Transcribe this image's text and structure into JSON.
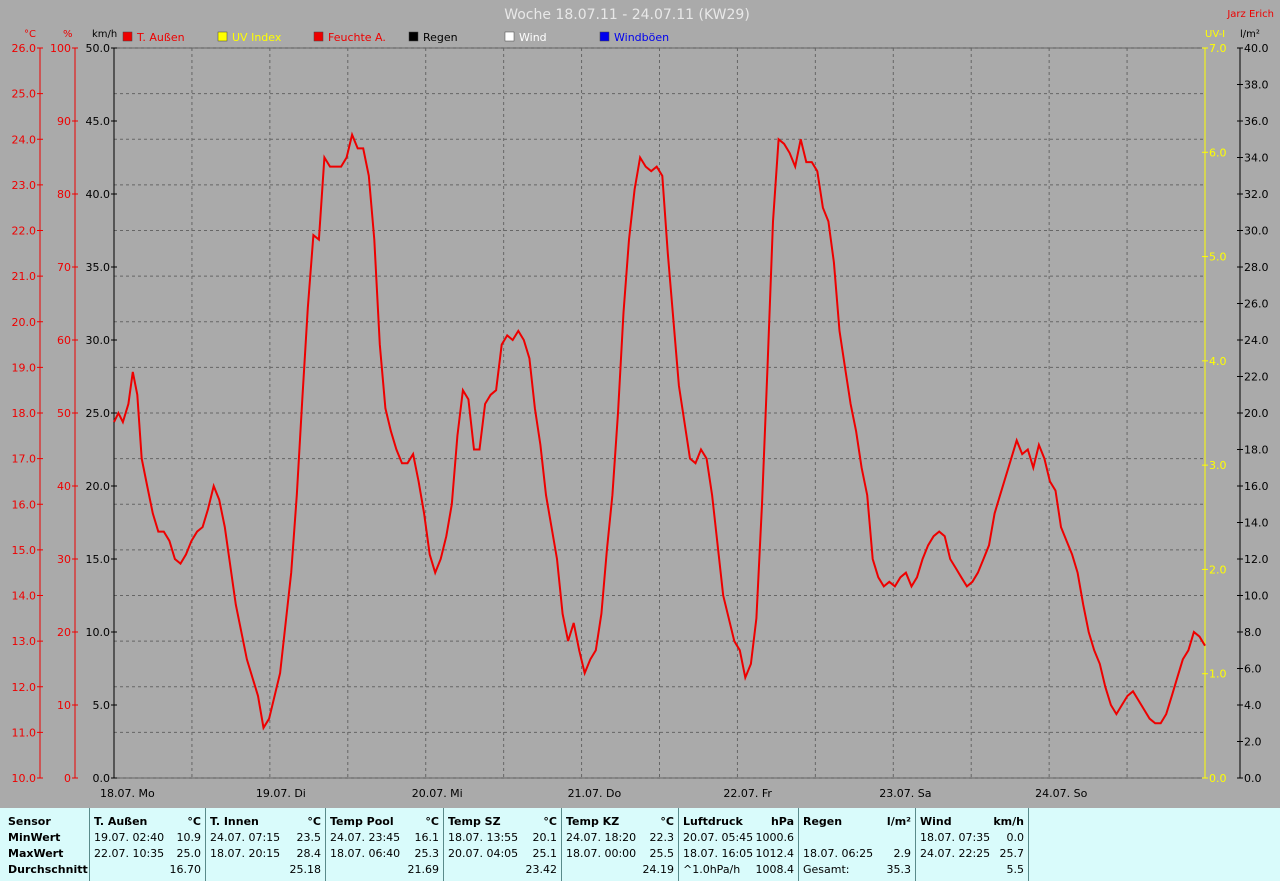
{
  "chart_data": {
    "type": "line",
    "title": "Woche 18.07.11 - 24.07.11 (KW29)",
    "author": "Jarz Erich",
    "axes": {
      "temp": {
        "unit": "°C",
        "min": 10,
        "max": 26,
        "ticks": [
          "10.0",
          "11.0",
          "12.0",
          "13.0",
          "14.0",
          "15.0",
          "16.0",
          "17.0",
          "18.0",
          "19.0",
          "20.0",
          "21.0",
          "22.0",
          "23.0",
          "24.0",
          "25.0",
          "26.0"
        ],
        "color": "#ee0000"
      },
      "humidity": {
        "unit": "%",
        "min": 0,
        "max": 100,
        "ticks": [
          "0",
          "10",
          "20",
          "30",
          "40",
          "50",
          "60",
          "70",
          "80",
          "90",
          "100"
        ],
        "color": "#ee0000"
      },
      "wind": {
        "unit": "km/h",
        "min": 0,
        "max": 50,
        "ticks": [
          "0.0",
          "5.0",
          "10.0",
          "15.0",
          "20.0",
          "25.0",
          "30.0",
          "35.0",
          "40.0",
          "45.0",
          "50.0"
        ],
        "color": "#000000"
      },
      "uv": {
        "unit": "UV-I",
        "min": 0,
        "max": 7,
        "ticks": [
          "0.0",
          "1.0",
          "2.0",
          "3.0",
          "4.0",
          "5.0",
          "6.0",
          "7.0"
        ],
        "color": "#ffff00"
      },
      "rain": {
        "unit": "l/m²",
        "min": 0,
        "max": 40,
        "ticks": [
          "0.0",
          "2.0",
          "4.0",
          "6.0",
          "8.0",
          "10.0",
          "12.0",
          "14.0",
          "16.0",
          "18.0",
          "20.0",
          "22.0",
          "24.0",
          "26.0",
          "28.0",
          "30.0",
          "32.0",
          "34.0",
          "36.0",
          "38.0",
          "40.0"
        ],
        "color": "#000000"
      }
    },
    "x_labels": [
      "18.07. Mo",
      "19.07. Di",
      "20.07. Mi",
      "21.07. Do",
      "22.07. Fr",
      "23.07. Sa",
      "24.07. So"
    ],
    "legend": [
      {
        "name": "T. Außen",
        "color": "#ee0000"
      },
      {
        "name": "UV Index",
        "color": "#ffff00"
      },
      {
        "name": "Feuchte A.",
        "color": "#ee0000"
      },
      {
        "name": "Regen",
        "color": "#000000"
      },
      {
        "name": "Wind",
        "color": "#ffffff"
      },
      {
        "name": "Windböen",
        "color": "#0000ee"
      }
    ],
    "series": {
      "temp": [
        [
          0,
          17.8
        ],
        [
          0.04,
          18
        ],
        [
          0.08,
          17.8
        ],
        [
          0.13,
          18.2
        ],
        [
          0.17,
          18.9
        ],
        [
          0.21,
          18.4
        ],
        [
          0.25,
          17
        ],
        [
          0.3,
          16.4
        ],
        [
          0.35,
          15.8
        ],
        [
          0.4,
          15.4
        ],
        [
          0.45,
          15.4
        ],
        [
          0.5,
          15.2
        ],
        [
          0.55,
          14.8
        ],
        [
          0.6,
          14.7
        ],
        [
          0.65,
          14.9
        ],
        [
          0.7,
          15.2
        ],
        [
          0.75,
          15.4
        ],
        [
          0.8,
          15.5
        ],
        [
          0.85,
          15.9
        ],
        [
          0.9,
          16.4
        ],
        [
          0.95,
          16.1
        ],
        [
          1.0,
          15.5
        ],
        [
          1.1,
          13.8
        ],
        [
          1.2,
          12.6
        ],
        [
          1.3,
          11.8
        ],
        [
          1.35,
          11.1
        ],
        [
          1.4,
          11.3
        ],
        [
          1.5,
          12.3
        ],
        [
          1.6,
          14.5
        ],
        [
          1.65,
          16.2
        ],
        [
          1.7,
          18.3
        ],
        [
          1.75,
          20.3
        ],
        [
          1.8,
          21.9
        ],
        [
          1.85,
          21.8
        ],
        [
          1.9,
          23.6
        ],
        [
          1.95,
          23.4
        ],
        [
          2.0,
          23.4
        ],
        [
          2.05,
          23.4
        ],
        [
          2.1,
          23.6
        ],
        [
          2.15,
          24.1
        ],
        [
          2.2,
          23.8
        ],
        [
          2.25,
          23.8
        ],
        [
          2.3,
          23.2
        ],
        [
          2.35,
          21.8
        ],
        [
          2.4,
          19.5
        ],
        [
          2.45,
          18.1
        ],
        [
          2.5,
          17.6
        ],
        [
          2.55,
          17.2
        ],
        [
          2.6,
          16.9
        ],
        [
          2.65,
          16.9
        ],
        [
          2.7,
          17.1
        ],
        [
          2.75,
          16.5
        ],
        [
          2.8,
          15.8
        ],
        [
          2.85,
          14.9
        ],
        [
          2.9,
          14.5
        ],
        [
          2.95,
          14.8
        ],
        [
          3.0,
          15.3
        ],
        [
          3.05,
          16
        ],
        [
          3.1,
          17.5
        ],
        [
          3.15,
          18.5
        ],
        [
          3.2,
          18.3
        ],
        [
          3.25,
          17.2
        ],
        [
          3.3,
          17.2
        ],
        [
          3.35,
          18.2
        ],
        [
          3.4,
          18.4
        ],
        [
          3.45,
          18.5
        ],
        [
          3.5,
          19.5
        ],
        [
          3.55,
          19.7
        ],
        [
          3.6,
          19.6
        ],
        [
          3.65,
          19.8
        ],
        [
          3.7,
          19.6
        ],
        [
          3.75,
          19.2
        ],
        [
          3.8,
          18.1
        ],
        [
          3.85,
          17.3
        ],
        [
          3.9,
          16.2
        ],
        [
          3.95,
          15.5
        ],
        [
          4.0,
          14.8
        ],
        [
          4.05,
          13.6
        ],
        [
          4.1,
          13
        ],
        [
          4.15,
          13.4
        ],
        [
          4.2,
          12.8
        ],
        [
          4.25,
          12.3
        ],
        [
          4.3,
          12.6
        ],
        [
          4.35,
          12.8
        ],
        [
          4.4,
          13.6
        ],
        [
          4.45,
          15
        ],
        [
          4.5,
          16.2
        ],
        [
          4.55,
          18
        ],
        [
          4.6,
          20.2
        ],
        [
          4.65,
          21.8
        ],
        [
          4.7,
          22.9
        ],
        [
          4.75,
          23.6
        ],
        [
          4.8,
          23.4
        ],
        [
          4.85,
          23.3
        ],
        [
          4.9,
          23.4
        ],
        [
          4.95,
          23.2
        ],
        [
          5.0,
          21.5
        ],
        [
          5.1,
          18.6
        ],
        [
          5.2,
          17
        ],
        [
          5.25,
          16.9
        ],
        [
          5.3,
          17.2
        ],
        [
          5.35,
          17
        ],
        [
          5.4,
          16.2
        ],
        [
          5.5,
          14
        ],
        [
          5.6,
          13
        ],
        [
          5.65,
          12.8
        ],
        [
          5.7,
          12.2
        ],
        [
          5.75,
          12.5
        ],
        [
          5.8,
          13.5
        ],
        [
          5.85,
          16
        ],
        [
          5.9,
          19
        ],
        [
          5.95,
          22.2
        ],
        [
          6.0,
          24
        ],
        [
          6.05,
          23.9
        ],
        [
          6.1,
          23.7
        ],
        [
          6.15,
          23.4
        ],
        [
          6.2,
          24
        ],
        [
          6.25,
          23.5
        ],
        [
          6.3,
          23.5
        ],
        [
          6.35,
          23.3
        ],
        [
          6.4,
          22.5
        ],
        [
          6.45,
          22.2
        ],
        [
          6.5,
          21.3
        ],
        [
          6.55,
          19.8
        ],
        [
          6.6,
          19
        ],
        [
          6.65,
          18.2
        ],
        [
          6.7,
          17.6
        ],
        [
          6.75,
          16.8
        ],
        [
          6.8,
          16.2
        ],
        [
          6.85,
          14.8
        ],
        [
          6.9,
          14.4
        ],
        [
          6.95,
          14.2
        ],
        [
          7.0,
          14.3
        ],
        [
          7.05,
          14.2
        ],
        [
          7.1,
          14.4
        ],
        [
          7.15,
          14.5
        ],
        [
          7.2,
          14.2
        ],
        [
          7.25,
          14.4
        ],
        [
          7.3,
          14.8
        ],
        [
          7.35,
          15.1
        ],
        [
          7.4,
          15.3
        ],
        [
          7.45,
          15.4
        ],
        [
          7.5,
          15.3
        ],
        [
          7.55,
          14.8
        ],
        [
          7.6,
          14.6
        ],
        [
          7.65,
          14.4
        ],
        [
          7.7,
          14.2
        ],
        [
          7.75,
          14.3
        ],
        [
          7.8,
          14.5
        ],
        [
          7.85,
          14.8
        ],
        [
          7.9,
          15.1
        ],
        [
          7.95,
          15.8
        ],
        [
          8.0,
          16.2
        ],
        [
          8.05,
          16.6
        ],
        [
          8.1,
          17
        ],
        [
          8.15,
          17.4
        ],
        [
          8.2,
          17.1
        ],
        [
          8.25,
          17.2
        ],
        [
          8.3,
          16.8
        ],
        [
          8.35,
          17.3
        ],
        [
          8.4,
          17
        ],
        [
          8.45,
          16.5
        ],
        [
          8.5,
          16.3
        ],
        [
          8.55,
          15.5
        ],
        [
          8.6,
          15.2
        ],
        [
          8.65,
          14.9
        ],
        [
          8.7,
          14.5
        ],
        [
          8.75,
          13.8
        ],
        [
          8.8,
          13.2
        ],
        [
          8.85,
          12.8
        ],
        [
          8.9,
          12.5
        ],
        [
          8.95,
          12
        ],
        [
          9.0,
          11.6
        ],
        [
          9.05,
          11.4
        ],
        [
          9.1,
          11.6
        ],
        [
          9.15,
          11.8
        ],
        [
          9.2,
          11.9
        ],
        [
          9.25,
          11.7
        ],
        [
          9.3,
          11.5
        ],
        [
          9.35,
          11.3
        ],
        [
          9.4,
          11.2
        ],
        [
          9.45,
          11.2
        ],
        [
          9.5,
          11.4
        ],
        [
          9.55,
          11.8
        ],
        [
          9.6,
          12.2
        ],
        [
          9.65,
          12.6
        ],
        [
          9.7,
          12.8
        ],
        [
          9.75,
          13.2
        ],
        [
          9.8,
          13.1
        ],
        [
          9.85,
          12.9
        ]
      ]
    }
  },
  "table": {
    "sensor_col": {
      "header": "Sensor",
      "min": "MinWert",
      "max": "MaxWert",
      "avg": "Durchschnitt"
    },
    "columns": [
      {
        "name": "T. Außen",
        "unit": "°C",
        "min_time": "19.07.  02:40",
        "min_val": "10.9",
        "max_time": "22.07.  10:35",
        "max_val": "25.0",
        "avg_time": "",
        "avg_val": "16.70"
      },
      {
        "name": "T. Innen",
        "unit": "°C",
        "min_time": "24.07.  07:15",
        "min_val": "23.5",
        "max_time": "18.07.  20:15",
        "max_val": "28.4",
        "avg_time": "",
        "avg_val": "25.18"
      },
      {
        "name": "Temp Pool",
        "unit": "°C",
        "min_time": "24.07.  23:45",
        "min_val": "16.1",
        "max_time": "18.07.  06:40",
        "max_val": "25.3",
        "avg_time": "",
        "avg_val": "21.69"
      },
      {
        "name": "Temp SZ",
        "unit": "°C",
        "min_time": "18.07.  13:55",
        "min_val": "20.1",
        "max_time": "20.07.  04:05",
        "max_val": "25.1",
        "avg_time": "",
        "avg_val": "23.42"
      },
      {
        "name": "Temp KZ",
        "unit": "°C",
        "min_time": "24.07.  18:20",
        "min_val": "22.3",
        "max_time": "18.07.  00:00",
        "max_val": "25.5",
        "avg_time": "",
        "avg_val": "24.19"
      },
      {
        "name": "Luftdruck",
        "unit": "hPa",
        "min_time": "20.07.  05:45",
        "min_val": "1000.6",
        "max_time": "18.07.  16:05",
        "max_val": "1012.4",
        "avg_time": "^1.0hPa/h",
        "avg_val": "1008.4"
      },
      {
        "name": "Regen",
        "unit": "l/m²",
        "min_time": "",
        "min_val": "",
        "max_time": "18.07.  06:25",
        "max_val": "2.9",
        "avg_time": "Gesamt:",
        "avg_val": "35.3"
      },
      {
        "name": "Wind",
        "unit": "km/h",
        "min_time": "18.07.  07:35",
        "min_val": "0.0",
        "max_time": "24.07.  22:25",
        "max_val": "25.7",
        "avg_time": "",
        "avg_val": "5.5"
      }
    ]
  }
}
